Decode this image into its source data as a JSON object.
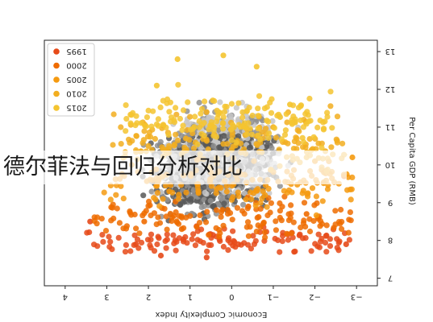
{
  "overlay": {
    "title": "德尔菲法与回归分析对比"
  },
  "colors": {
    "series": [
      "#e64a19",
      "#ef6c00",
      "#f59a10",
      "#f2ae20",
      "#f4c430"
    ],
    "gray_dark": "#585858",
    "gray_mid": "#8f8f8f",
    "gray_light": "#c6c6c6",
    "axis": "#222222"
  },
  "chart_data": {
    "type": "scatter",
    "orientation": "rotated-180",
    "xlabel": "Economic Complexity Index",
    "ylabel": "Per Capita GDP (RMB)",
    "x_ticks": [
      "4",
      "3",
      "2",
      "1",
      "0",
      "−1",
      "−2",
      "−3"
    ],
    "y_ticks": [
      "7",
      "8",
      "9",
      "10",
      "11",
      "12",
      "13"
    ],
    "xlim": [
      4.5,
      -3.5
    ],
    "ylim": [
      6.8,
      13.3
    ],
    "grid": false,
    "legend": {
      "placement": "top-left",
      "entries": [
        "1995",
        "2000",
        "2005",
        "2010",
        "2015"
      ]
    },
    "series": [
      {
        "name": "1995",
        "x_range": [
          -2.9,
          3.5
        ],
        "y_center": 8.0,
        "y_spread": 0.35,
        "count": 120,
        "example_points": [
          [
            2.3,
            7.9
          ],
          [
            1.7,
            7.6
          ],
          [
            0.6,
            7.55
          ],
          [
            -1.5,
            7.7
          ],
          [
            -2.75,
            7.9
          ],
          [
            3.4,
            8.5
          ]
        ]
      },
      {
        "name": "2000",
        "x_range": [
          -2.9,
          3.3
        ],
        "y_center": 8.6,
        "y_spread": 0.45,
        "count": 140,
        "example_points": [
          [
            2.1,
            8.5
          ],
          [
            1.2,
            8.3
          ],
          [
            -0.4,
            8.9
          ],
          [
            -1.8,
            8.7
          ],
          [
            -2.7,
            9.7
          ],
          [
            0.3,
            8.1
          ]
        ]
      },
      {
        "name": "2005",
        "x_range": [
          -3.0,
          3.1
        ],
        "y_center": 9.5,
        "y_spread": 0.6,
        "count": 150,
        "example_points": [
          [
            1.5,
            9.3
          ],
          [
            0.5,
            9.8
          ],
          [
            -0.8,
            9.2
          ],
          [
            -2.0,
            10.1
          ],
          [
            -2.9,
            10.2
          ],
          [
            2.4,
            10.0
          ]
        ]
      },
      {
        "name": "2010",
        "x_range": [
          -2.7,
          2.9
        ],
        "y_center": 10.6,
        "y_spread": 0.65,
        "count": 150,
        "example_points": [
          [
            1.1,
            10.7
          ],
          [
            0.0,
            10.4
          ],
          [
            -1.0,
            11.0
          ],
          [
            -1.8,
            10.2
          ],
          [
            2.0,
            10.5
          ],
          [
            0.6,
            11.4
          ]
        ]
      },
      {
        "name": "2015",
        "x_range": [
          -2.5,
          2.6
        ],
        "y_center": 11.2,
        "y_spread": 0.6,
        "count": 160,
        "example_points": [
          [
            1.3,
            12.8
          ],
          [
            0.2,
            12.9
          ],
          [
            -0.6,
            12.6
          ],
          [
            1.8,
            12.1
          ],
          [
            -1.4,
            11.6
          ],
          [
            0.9,
            11.0
          ]
        ]
      }
    ],
    "background_points": {
      "count": 1600,
      "color_note": "gray",
      "x_range": [
        -3.0,
        4.0
      ],
      "y_range": [
        7.2,
        13.1
      ]
    }
  }
}
